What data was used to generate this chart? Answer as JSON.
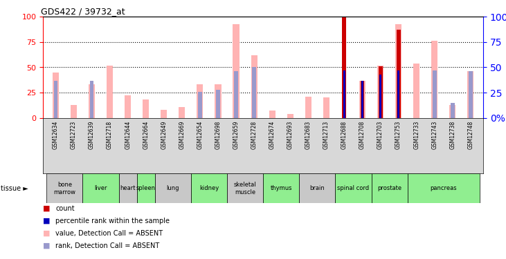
{
  "title": "GDS422 / 39732_at",
  "samples": [
    "GSM12634",
    "GSM12723",
    "GSM12639",
    "GSM12718",
    "GSM12644",
    "GSM12664",
    "GSM12649",
    "GSM12669",
    "GSM12654",
    "GSM12698",
    "GSM12659",
    "GSM12728",
    "GSM12674",
    "GSM12693",
    "GSM12683",
    "GSM12713",
    "GSM12688",
    "GSM12708",
    "GSM12703",
    "GSM12753",
    "GSM12733",
    "GSM12743",
    "GSM12738",
    "GSM12748"
  ],
  "tissue_groups": [
    {
      "label": "bone\nmarrow",
      "start": 0,
      "end": 2,
      "color": "#c8c8c8"
    },
    {
      "label": "liver",
      "start": 2,
      "end": 4,
      "color": "#90ee90"
    },
    {
      "label": "heart",
      "start": 4,
      "end": 5,
      "color": "#c8c8c8"
    },
    {
      "label": "spleen",
      "start": 5,
      "end": 6,
      "color": "#90ee90"
    },
    {
      "label": "lung",
      "start": 6,
      "end": 8,
      "color": "#c8c8c8"
    },
    {
      "label": "kidney",
      "start": 8,
      "end": 10,
      "color": "#90ee90"
    },
    {
      "label": "skeletal\nmuscle",
      "start": 10,
      "end": 12,
      "color": "#c8c8c8"
    },
    {
      "label": "thymus",
      "start": 12,
      "end": 14,
      "color": "#90ee90"
    },
    {
      "label": "brain",
      "start": 14,
      "end": 16,
      "color": "#c8c8c8"
    },
    {
      "label": "spinal cord",
      "start": 16,
      "end": 18,
      "color": "#90ee90"
    },
    {
      "label": "prostate",
      "start": 18,
      "end": 20,
      "color": "#90ee90"
    },
    {
      "label": "pancreas",
      "start": 20,
      "end": 24,
      "color": "#90ee90"
    }
  ],
  "pink_bars": [
    45,
    13,
    33,
    52,
    22,
    18,
    8,
    11,
    33,
    33,
    93,
    62,
    7,
    4,
    21,
    20,
    0,
    37,
    52,
    93,
    54,
    76,
    13,
    46
  ],
  "light_blue_bars": [
    37,
    0,
    37,
    0,
    0,
    0,
    0,
    0,
    26,
    28,
    46,
    50,
    0,
    0,
    0,
    0,
    0,
    0,
    0,
    0,
    0,
    47,
    15,
    46
  ],
  "red_bars": [
    0,
    0,
    0,
    0,
    0,
    0,
    0,
    0,
    0,
    0,
    0,
    0,
    0,
    0,
    0,
    0,
    100,
    37,
    51,
    87,
    0,
    0,
    0,
    0
  ],
  "dark_blue_bars": [
    0,
    0,
    0,
    0,
    0,
    0,
    0,
    0,
    0,
    0,
    0,
    0,
    0,
    0,
    0,
    0,
    47,
    37,
    43,
    47,
    0,
    0,
    0,
    0
  ],
  "ylim": [
    0,
    100
  ],
  "yticks_left": [
    0,
    25,
    50,
    75,
    100
  ],
  "yticks_right": [
    0,
    25,
    50,
    75,
    100
  ],
  "bg_color": "#ffffff",
  "plot_bg": "#ffffff",
  "pink_color": "#ffb3b3",
  "light_blue_color": "#9999cc",
  "red_color": "#cc0000",
  "dark_blue_color": "#0000bb",
  "grid_color": "black",
  "tick_color_left": "red",
  "tick_color_right": "blue"
}
